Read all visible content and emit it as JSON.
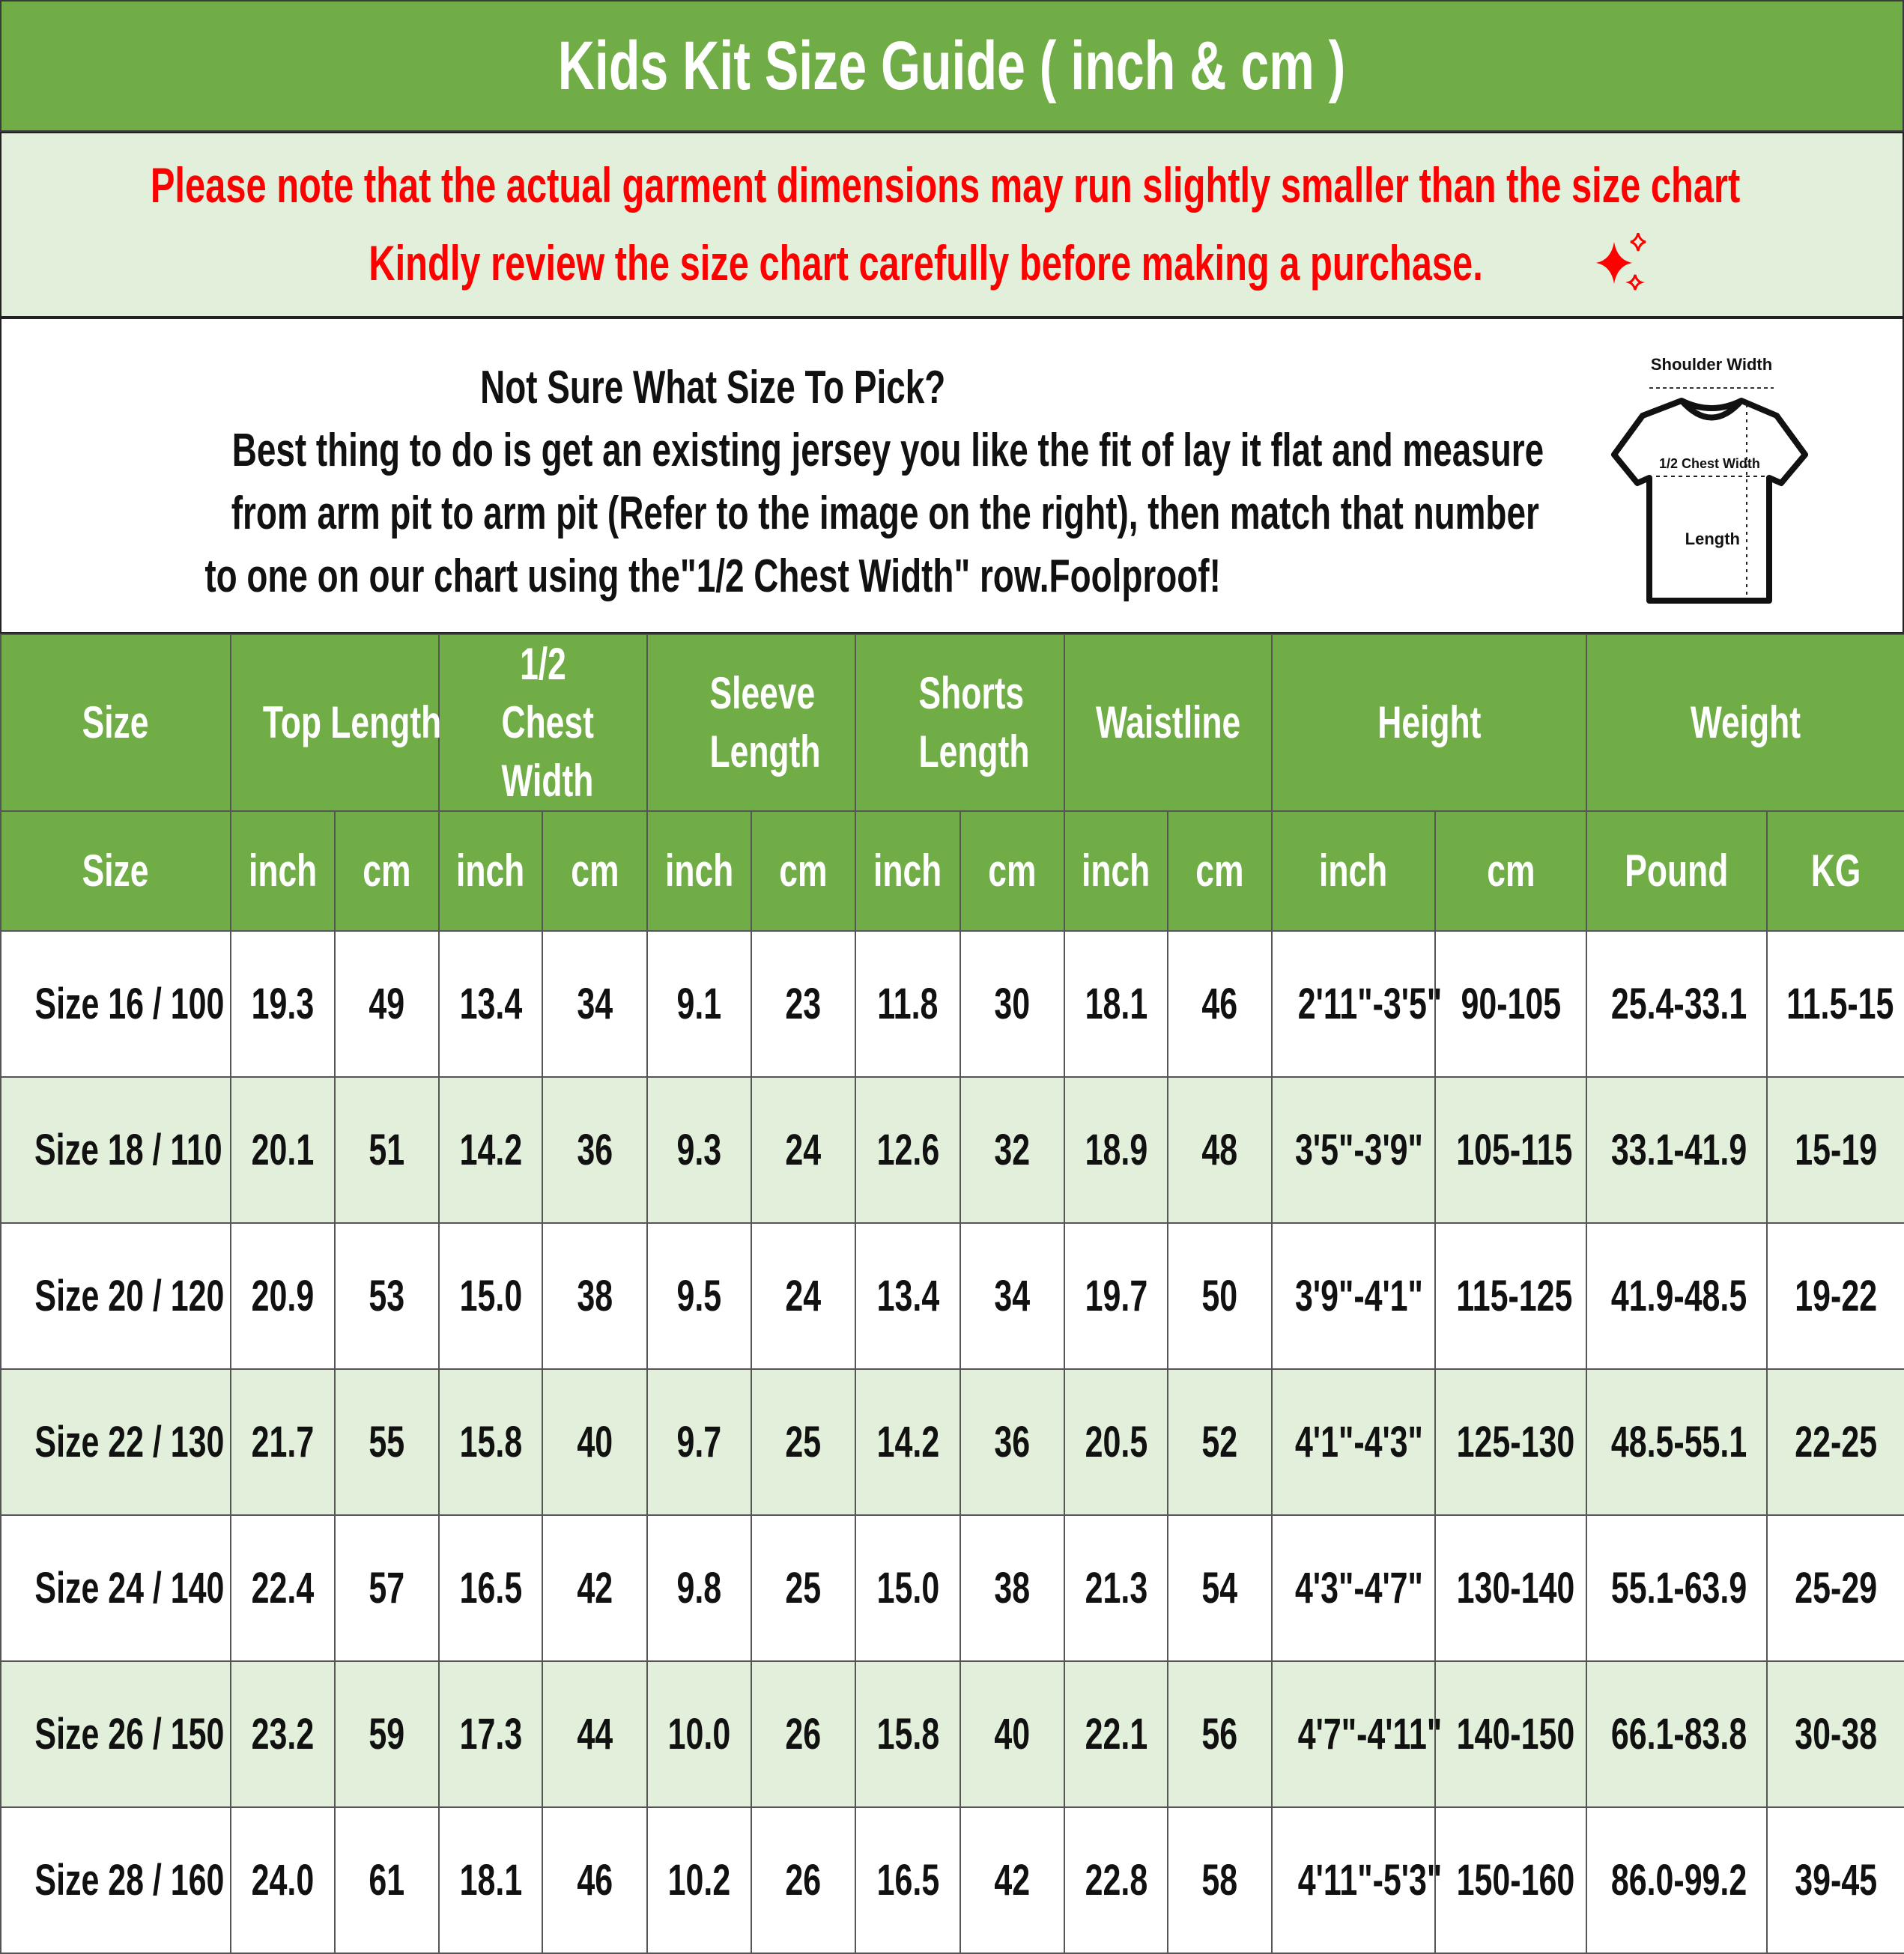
{
  "title": "Kids Kit Size Guide ( inch & cm )",
  "note": {
    "line1": "Please note that the actual garment dimensions may run slightly smaller than the size chart",
    "line1_end": ".",
    "line2": "Kindly review the size chart carefully before making a purchase.",
    "pin_icon": "pushpin-icon",
    "ruler_icon": "ruler-icon",
    "sparkle_icon": "sparkles-icon",
    "color": "#FF0000"
  },
  "info": {
    "heading": "Not Sure What Size To Pick?",
    "line1": "Best thing to do is get an existing jersey you like the fit of lay it flat and measure",
    "line2": "from arm pit to arm pit (Refer to the image on the right), then match that number",
    "line3": "to one on our chart using the\"1/2 Chest Width\" row.Foolproof!"
  },
  "diagram": {
    "shoulder": "Shoulder Width",
    "chest": "1/2 Chest Width",
    "length": "Length"
  },
  "colors": {
    "header_green": "#70AD47",
    "row_tint": "#E2EFDA"
  },
  "table": {
    "groups": [
      "Size",
      "Top Length",
      "1/2 Chest Width",
      "Sleeve Length",
      "Shorts Length",
      "Waistline",
      "Height",
      "Weight"
    ],
    "units": [
      "Size",
      "inch",
      "cm",
      "inch",
      "cm",
      "inch",
      "cm",
      "inch",
      "cm",
      "inch",
      "cm",
      "inch",
      "cm",
      "Pound",
      "KG"
    ],
    "rows": [
      [
        "Size 16 / 100",
        "19.3",
        "49",
        "13.4",
        "34",
        "9.1",
        "23",
        "11.8",
        "30",
        "18.1",
        "46",
        "2'11\"-3'5\"",
        "90-105",
        "25.4-33.1",
        "11.5-15"
      ],
      [
        "Size 18 / 110",
        "20.1",
        "51",
        "14.2",
        "36",
        "9.3",
        "24",
        "12.6",
        "32",
        "18.9",
        "48",
        "3'5\"-3'9\"",
        "105-115",
        "33.1-41.9",
        "15-19"
      ],
      [
        "Size 20 / 120",
        "20.9",
        "53",
        "15.0",
        "38",
        "9.5",
        "24",
        "13.4",
        "34",
        "19.7",
        "50",
        "3'9\"-4'1\"",
        "115-125",
        "41.9-48.5",
        "19-22"
      ],
      [
        "Size 22 / 130",
        "21.7",
        "55",
        "15.8",
        "40",
        "9.7",
        "25",
        "14.2",
        "36",
        "20.5",
        "52",
        "4'1\"-4'3\"",
        "125-130",
        "48.5-55.1",
        "22-25"
      ],
      [
        "Size 24 / 140",
        "22.4",
        "57",
        "16.5",
        "42",
        "9.8",
        "25",
        "15.0",
        "38",
        "21.3",
        "54",
        "4'3\"-4'7\"",
        "130-140",
        "55.1-63.9",
        "25-29"
      ],
      [
        "Size 26 / 150",
        "23.2",
        "59",
        "17.3",
        "44",
        "10.0",
        "26",
        "15.8",
        "40",
        "22.1",
        "56",
        "4'7\"-4'11\"",
        "140-150",
        "66.1-83.8",
        "30-38"
      ],
      [
        "Size 28 / 160",
        "24.0",
        "61",
        "18.1",
        "46",
        "10.2",
        "26",
        "16.5",
        "42",
        "22.8",
        "58",
        "4'11\"-5'3\"",
        "150-160",
        "86.0-99.2",
        "39-45"
      ]
    ]
  }
}
